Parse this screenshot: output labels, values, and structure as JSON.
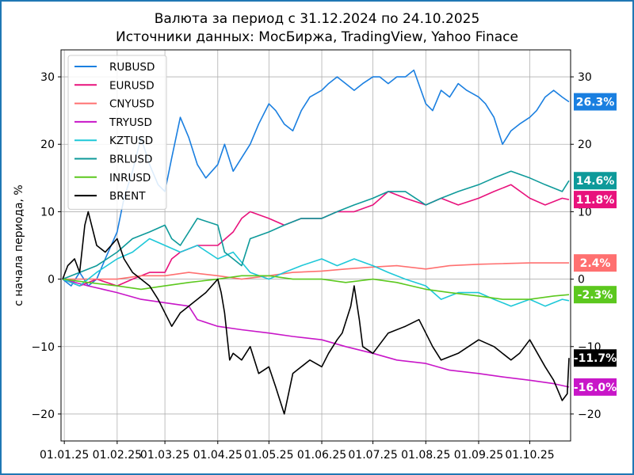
{
  "chart_data": {
    "type": "line",
    "title": "Валюта за период с 31.12.2024 по 24.10.2025",
    "subtitle": "Источники данных: МосБиржа, TradingView, Yahoo Finace",
    "xlabel": "",
    "ylabel": "с начала периода, %",
    "x_ticks": [
      "01.01.25",
      "01.02.25",
      "01.03.25",
      "01.04.25",
      "01.05.25",
      "01.06.25",
      "01.07.25",
      "01.08.25",
      "01.09.25",
      "01.10.25"
    ],
    "y_ticks": [
      -20,
      -10,
      0,
      10,
      20,
      30
    ],
    "ylim": [
      -24,
      34
    ],
    "grid": true,
    "legend": "top-left",
    "series": [
      {
        "name": "RUBUSD",
        "color": "#1a7fe0",
        "final_label": "26.3%",
        "x": [
          "2024-12-31",
          "2025-01-05",
          "2025-01-10",
          "2025-01-15",
          "2025-01-20",
          "2025-01-25",
          "2025-02-01",
          "2025-02-05",
          "2025-02-10",
          "2025-02-15",
          "2025-02-20",
          "2025-02-25",
          "2025-03-01",
          "2025-03-05",
          "2025-03-10",
          "2025-03-15",
          "2025-03-20",
          "2025-03-25",
          "2025-04-01",
          "2025-04-05",
          "2025-04-10",
          "2025-04-15",
          "2025-04-20",
          "2025-04-25",
          "2025-05-01",
          "2025-05-05",
          "2025-05-10",
          "2025-05-15",
          "2025-05-20",
          "2025-05-25",
          "2025-06-01",
          "2025-06-05",
          "2025-06-10",
          "2025-06-15",
          "2025-06-20",
          "2025-06-25",
          "2025-07-01",
          "2025-07-05",
          "2025-07-10",
          "2025-07-15",
          "2025-07-20",
          "2025-07-25",
          "2025-08-01",
          "2025-08-05",
          "2025-08-10",
          "2025-08-15",
          "2025-08-20",
          "2025-08-25",
          "2025-09-01",
          "2025-09-05",
          "2025-09-10",
          "2025-09-15",
          "2025-09-20",
          "2025-09-25",
          "2025-10-01",
          "2025-10-05",
          "2025-10-10",
          "2025-10-15",
          "2025-10-20",
          "2025-10-24"
        ],
        "values": [
          0,
          -1,
          1,
          -1,
          0,
          3,
          7,
          12,
          16,
          21,
          17,
          14,
          13,
          18,
          24,
          21,
          17,
          15,
          17,
          20,
          16,
          18,
          20,
          23,
          26,
          25,
          23,
          22,
          25,
          27,
          28,
          29,
          30,
          29,
          28,
          29,
          30,
          30,
          29,
          30,
          30,
          31,
          26,
          25,
          28,
          27,
          29,
          28,
          27,
          26,
          24,
          20,
          22,
          23,
          24,
          25,
          27,
          28,
          27,
          26.3
        ]
      },
      {
        "name": "EURUSD",
        "color": "#e8127c",
        "final_label": "11.8%",
        "x": [
          "2024-12-31",
          "2025-01-10",
          "2025-01-20",
          "2025-02-01",
          "2025-02-10",
          "2025-02-20",
          "2025-03-01",
          "2025-03-05",
          "2025-03-10",
          "2025-03-20",
          "2025-04-01",
          "2025-04-10",
          "2025-04-15",
          "2025-04-20",
          "2025-05-01",
          "2025-05-10",
          "2025-05-20",
          "2025-06-01",
          "2025-06-10",
          "2025-06-20",
          "2025-07-01",
          "2025-07-10",
          "2025-07-20",
          "2025-08-01",
          "2025-08-10",
          "2025-08-20",
          "2025-09-01",
          "2025-09-10",
          "2025-09-20",
          "2025-10-01",
          "2025-10-10",
          "2025-10-20",
          "2025-10-24"
        ],
        "values": [
          0,
          -1,
          0,
          -1,
          0,
          1,
          1,
          3,
          4,
          5,
          5,
          7,
          9,
          10,
          9,
          8,
          9,
          9,
          10,
          10,
          11,
          13,
          12,
          11,
          12,
          11,
          12,
          13,
          14,
          12,
          11,
          12,
          11.8
        ]
      },
      {
        "name": "CNYUSD",
        "color": "#ff7070",
        "final_label": "2.4%",
        "x": [
          "2024-12-31",
          "2025-01-15",
          "2025-02-01",
          "2025-02-15",
          "2025-03-01",
          "2025-03-15",
          "2025-04-01",
          "2025-04-15",
          "2025-05-01",
          "2025-05-15",
          "2025-06-01",
          "2025-06-15",
          "2025-07-01",
          "2025-07-15",
          "2025-08-01",
          "2025-08-15",
          "2025-09-01",
          "2025-09-15",
          "2025-10-01",
          "2025-10-15",
          "2025-10-24"
        ],
        "values": [
          0,
          0,
          0,
          0.5,
          0.5,
          1,
          0.5,
          0,
          0.5,
          1,
          1.2,
          1.5,
          1.8,
          2,
          1.5,
          2,
          2.2,
          2.3,
          2.4,
          2.4,
          2.4
        ]
      },
      {
        "name": "TRYUSD",
        "color": "#c816c8",
        "final_label": "-16.0%",
        "x": [
          "2024-12-31",
          "2025-01-15",
          "2025-02-01",
          "2025-02-15",
          "2025-03-01",
          "2025-03-15",
          "2025-03-20",
          "2025-04-01",
          "2025-04-15",
          "2025-05-01",
          "2025-05-15",
          "2025-06-01",
          "2025-06-15",
          "2025-07-01",
          "2025-07-15",
          "2025-08-01",
          "2025-08-15",
          "2025-09-01",
          "2025-09-15",
          "2025-10-01",
          "2025-10-15",
          "2025-10-24"
        ],
        "values": [
          0,
          -1,
          -2,
          -3,
          -3.5,
          -4,
          -6,
          -7,
          -7.5,
          -8,
          -8.5,
          -9,
          -10,
          -11,
          -12,
          -12.5,
          -13.5,
          -14,
          -14.5,
          -15,
          -15.5,
          -16
        ]
      },
      {
        "name": "KZTUSD",
        "color": "#1ec8d8",
        "final_label": "",
        "x": [
          "2024-12-31",
          "2025-01-10",
          "2025-01-20",
          "2025-02-01",
          "2025-02-10",
          "2025-02-20",
          "2025-03-01",
          "2025-03-10",
          "2025-03-20",
          "2025-04-01",
          "2025-04-10",
          "2025-04-20",
          "2025-05-01",
          "2025-05-10",
          "2025-05-20",
          "2025-06-01",
          "2025-06-10",
          "2025-06-20",
          "2025-07-01",
          "2025-07-10",
          "2025-07-20",
          "2025-08-01",
          "2025-08-10",
          "2025-08-20",
          "2025-09-01",
          "2025-09-10",
          "2025-09-20",
          "2025-10-01",
          "2025-10-10",
          "2025-10-20",
          "2025-10-24"
        ],
        "values": [
          0,
          -1,
          1,
          3,
          4,
          6,
          5,
          4,
          5,
          3,
          4,
          1,
          0,
          1,
          2,
          3,
          2,
          3,
          2,
          1,
          0,
          -1,
          -3,
          -2,
          -2,
          -3,
          -4,
          -3,
          -4,
          -3,
          -3.2
        ]
      },
      {
        "name": "BRLUSD",
        "color": "#0e9a9a",
        "final_label": "14.6%",
        "x": [
          "2024-12-31",
          "2025-01-10",
          "2025-01-20",
          "2025-02-01",
          "2025-02-10",
          "2025-02-20",
          "2025-03-01",
          "2025-03-05",
          "2025-03-10",
          "2025-03-20",
          "2025-04-01",
          "2025-04-05",
          "2025-04-10",
          "2025-04-15",
          "2025-04-20",
          "2025-05-01",
          "2025-05-10",
          "2025-05-20",
          "2025-06-01",
          "2025-06-10",
          "2025-06-20",
          "2025-07-01",
          "2025-07-10",
          "2025-07-20",
          "2025-08-01",
          "2025-08-10",
          "2025-08-20",
          "2025-09-01",
          "2025-09-10",
          "2025-09-20",
          "2025-10-01",
          "2025-10-10",
          "2025-10-20",
          "2025-10-24"
        ],
        "values": [
          0,
          1,
          2,
          4,
          6,
          7,
          8,
          6,
          5,
          9,
          8,
          4,
          3,
          2,
          6,
          7,
          8,
          9,
          9,
          10,
          11,
          12,
          13,
          13,
          11,
          12,
          13,
          14,
          15,
          16,
          15,
          14,
          13,
          14.6
        ]
      },
      {
        "name": "INRUSD",
        "color": "#5cc81e",
        "final_label": "-2.3%",
        "x": [
          "2024-12-31",
          "2025-01-15",
          "2025-02-01",
          "2025-02-15",
          "2025-03-01",
          "2025-03-15",
          "2025-04-01",
          "2025-04-15",
          "2025-05-01",
          "2025-05-15",
          "2025-06-01",
          "2025-06-15",
          "2025-07-01",
          "2025-07-15",
          "2025-08-01",
          "2025-08-15",
          "2025-09-01",
          "2025-09-15",
          "2025-10-01",
          "2025-10-15",
          "2025-10-24"
        ],
        "values": [
          0,
          -0.5,
          -1,
          -1.5,
          -1,
          -0.5,
          0,
          0.5,
          0.5,
          0,
          0,
          -0.5,
          0,
          -0.5,
          -1.5,
          -2,
          -2.5,
          -3,
          -3,
          -2.5,
          -2.3
        ]
      },
      {
        "name": "BRENT",
        "color": "#000000",
        "final_label": "-11.7%",
        "x": [
          "2024-12-31",
          "2025-01-03",
          "2025-01-07",
          "2025-01-10",
          "2025-01-13",
          "2025-01-15",
          "2025-01-20",
          "2025-01-25",
          "2025-02-01",
          "2025-02-05",
          "2025-02-10",
          "2025-02-15",
          "2025-02-20",
          "2025-02-25",
          "2025-03-01",
          "2025-03-05",
          "2025-03-10",
          "2025-03-15",
          "2025-03-20",
          "2025-03-25",
          "2025-04-01",
          "2025-04-03",
          "2025-04-05",
          "2025-04-08",
          "2025-04-10",
          "2025-04-15",
          "2025-04-20",
          "2025-04-25",
          "2025-05-01",
          "2025-05-05",
          "2025-05-10",
          "2025-05-15",
          "2025-05-20",
          "2025-05-25",
          "2025-06-01",
          "2025-06-05",
          "2025-06-10",
          "2025-06-13",
          "2025-06-18",
          "2025-06-20",
          "2025-06-23",
          "2025-06-25",
          "2025-07-01",
          "2025-07-10",
          "2025-07-20",
          "2025-07-28",
          "2025-08-01",
          "2025-08-05",
          "2025-08-10",
          "2025-08-20",
          "2025-09-01",
          "2025-09-10",
          "2025-09-20",
          "2025-09-25",
          "2025-10-01",
          "2025-10-10",
          "2025-10-15",
          "2025-10-20",
          "2025-10-23",
          "2025-10-24"
        ],
        "values": [
          0,
          2,
          3,
          1,
          8,
          10,
          5,
          4,
          6,
          3,
          1,
          0,
          -1,
          -3,
          -5,
          -7,
          -5,
          -4,
          -3,
          -2,
          0,
          -2,
          -5,
          -12,
          -11,
          -12,
          -10,
          -14,
          -13,
          -16,
          -20,
          -14,
          -13,
          -12,
          -13,
          -11,
          -9,
          -8,
          -4,
          -1,
          -6,
          -10,
          -11,
          -8,
          -7,
          -6,
          -8,
          -10,
          -12,
          -11,
          -9,
          -10,
          -12,
          -11,
          -9,
          -13,
          -15,
          -18,
          -17,
          -11.7
        ]
      }
    ]
  }
}
